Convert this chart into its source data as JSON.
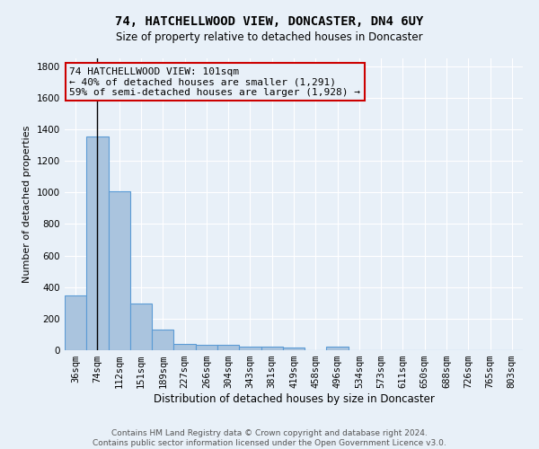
{
  "title1": "74, HATCHELLWOOD VIEW, DONCASTER, DN4 6UY",
  "title2": "Size of property relative to detached houses in Doncaster",
  "xlabel": "Distribution of detached houses by size in Doncaster",
  "ylabel": "Number of detached properties",
  "footer1": "Contains HM Land Registry data © Crown copyright and database right 2024.",
  "footer2": "Contains public sector information licensed under the Open Government Licence v3.0.",
  "annotation_line1": "74 HATCHELLWOOD VIEW: 101sqm",
  "annotation_line2": "← 40% of detached houses are smaller (1,291)",
  "annotation_line3": "59% of semi-detached houses are larger (1,928) →",
  "highlight_bar_index": 1,
  "bar_labels": [
    "36sqm",
    "74sqm",
    "112sqm",
    "151sqm",
    "189sqm",
    "227sqm",
    "266sqm",
    "304sqm",
    "343sqm",
    "381sqm",
    "419sqm",
    "458sqm",
    "496sqm",
    "534sqm",
    "573sqm",
    "611sqm",
    "650sqm",
    "688sqm",
    "726sqm",
    "765sqm",
    "803sqm"
  ],
  "bar_values": [
    350,
    1355,
    1010,
    295,
    130,
    40,
    35,
    35,
    20,
    20,
    15,
    2,
    20,
    2,
    0,
    0,
    0,
    0,
    0,
    0,
    0
  ],
  "bar_color": "#aac4de",
  "bar_edge_color": "#5b9bd5",
  "vline_color": "#000000",
  "annotation_box_edge": "#cc0000",
  "background_color": "#e8f0f8",
  "ylim": [
    0,
    1850
  ],
  "yticks": [
    0,
    200,
    400,
    600,
    800,
    1000,
    1200,
    1400,
    1600,
    1800
  ],
  "title1_fontsize": 10,
  "title2_fontsize": 8.5,
  "ylabel_fontsize": 8,
  "xlabel_fontsize": 8.5,
  "tick_fontsize": 7.5,
  "footer_fontsize": 6.5,
  "ann_fontsize": 8
}
